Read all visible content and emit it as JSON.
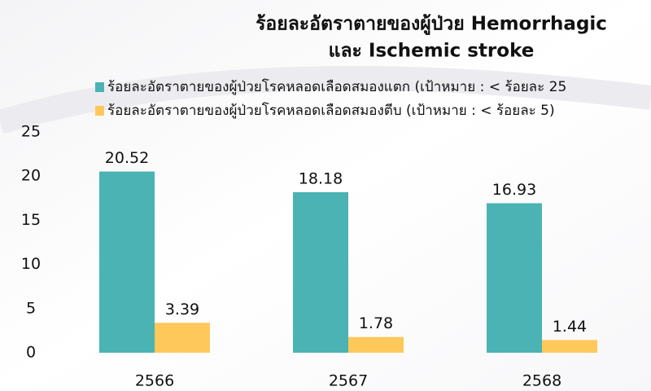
{
  "chart_data": {
    "type": "bar",
    "title": [
      "ร้อยละอัตราตายของผู้ป่วย Hemorrhagic",
      "และ Ischemic stroke"
    ],
    "categories": [
      "2566",
      "2567",
      "2568"
    ],
    "series": [
      {
        "name": "ร้อยละอัตราตายของผู้ป่วยโรคหลอดเลือดสมองแตก (เป้าหมาย : < ร้อยละ 25",
        "color": "#4bb3b3",
        "values": [
          20.52,
          18.18,
          16.93
        ]
      },
      {
        "name": "ร้อยละอัตราตายของผู้ป่วยโรคหลอดเลือดสมองตีบ  (เป้าหมาย : < ร้อยละ 5)",
        "color": "#ffc85a",
        "values": [
          3.39,
          1.78,
          1.44
        ]
      }
    ],
    "ylim": [
      0,
      25
    ],
    "yticks": [
      0,
      5,
      10,
      15,
      20,
      25
    ],
    "grid": false
  }
}
